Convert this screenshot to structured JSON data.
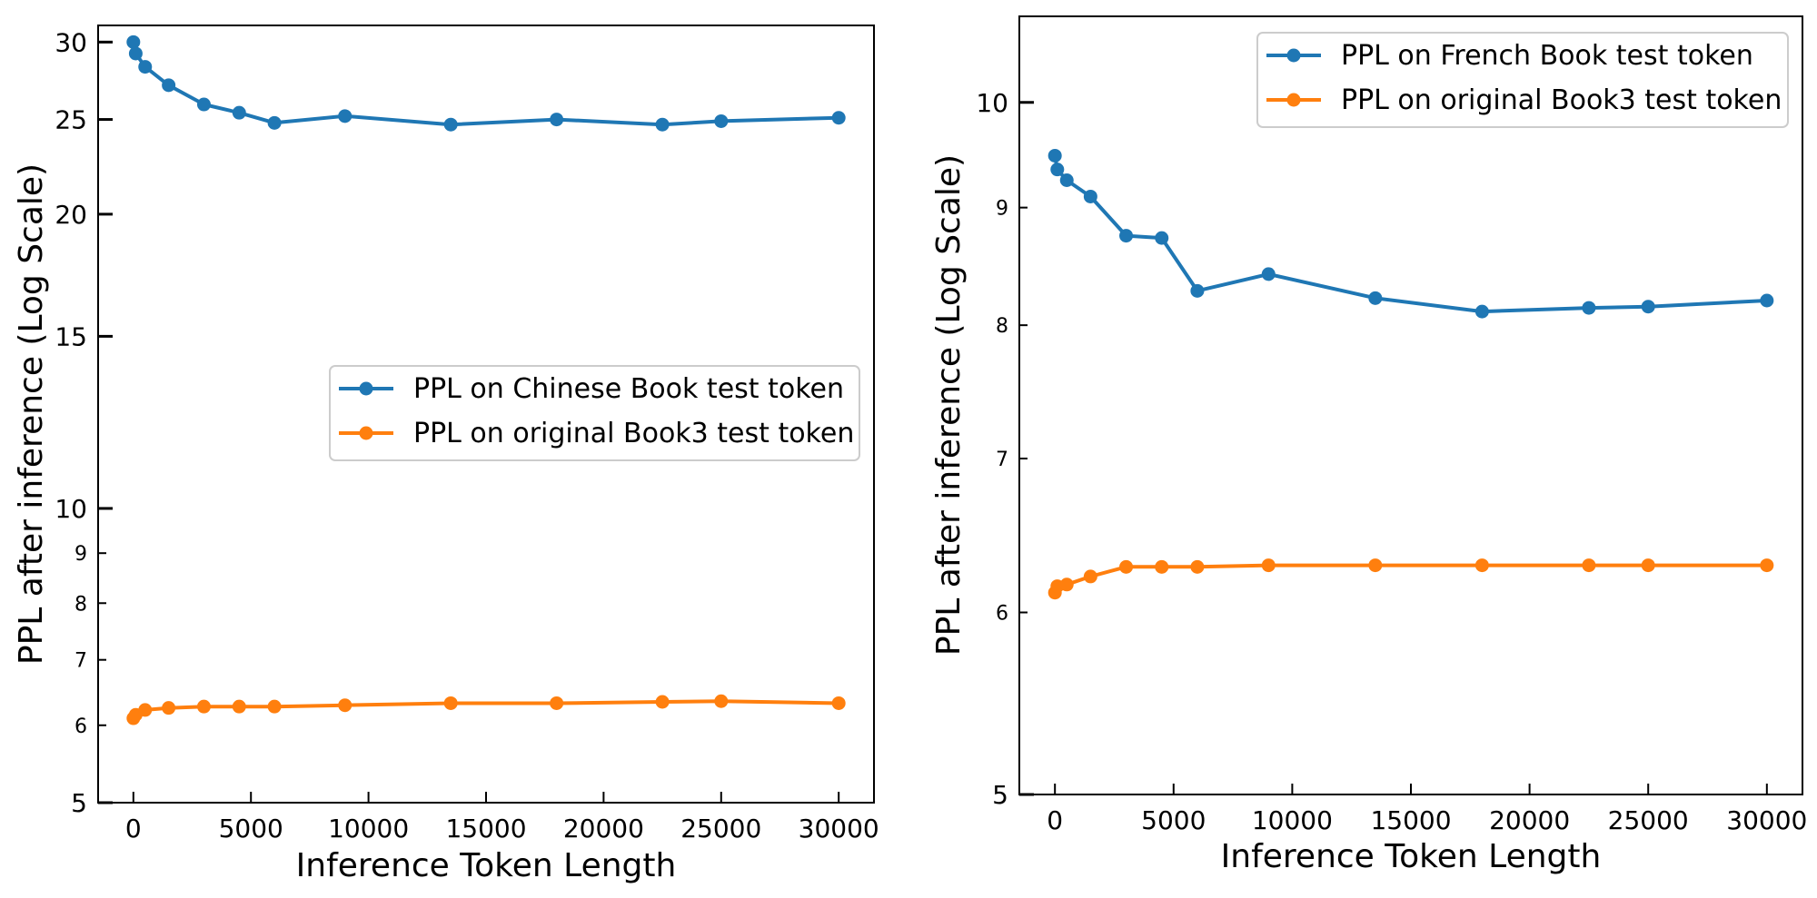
{
  "chart_data": [
    {
      "type": "line",
      "xlabel": "Inference Token Length",
      "ylabel": "PPL after inference (Log Scale)",
      "yscale": "log",
      "xlim": [
        -1500,
        31500
      ],
      "ylim": [
        5,
        31.2
      ],
      "xticks": [
        0,
        5000,
        10000,
        15000,
        20000,
        25000,
        30000
      ],
      "xtick_labels": [
        "0",
        "5000",
        "10000",
        "15000",
        "20000",
        "25000",
        "30000"
      ],
      "yticks_major": [
        5,
        10,
        15,
        20,
        25,
        30
      ],
      "ytick_labels_major": [
        "5",
        "10",
        "15",
        "20",
        "25",
        "30"
      ],
      "yticks_minor": [
        6,
        7,
        8,
        9
      ],
      "ytick_labels_minor": [
        "6",
        "7",
        "8",
        "9"
      ],
      "grid": false,
      "legend_position": "center-right",
      "x": [
        0,
        100,
        500,
        1500,
        3000,
        4500,
        6000,
        9000,
        13500,
        18000,
        22500,
        25000,
        30000
      ],
      "series": [
        {
          "name": "PPL on Chinese Book test token",
          "color": "#1f77b4",
          "values": [
            30.0,
            29.2,
            28.3,
            27.1,
            25.9,
            25.4,
            24.8,
            25.2,
            24.7,
            25.0,
            24.7,
            24.9,
            25.1
          ]
        },
        {
          "name": "PPL on original Book3 test token",
          "color": "#ff7f0e",
          "values": [
            6.1,
            6.15,
            6.22,
            6.25,
            6.27,
            6.27,
            6.27,
            6.29,
            6.32,
            6.32,
            6.34,
            6.35,
            6.32
          ]
        }
      ]
    },
    {
      "type": "line",
      "xlabel": "Inference Token Length",
      "ylabel": "PPL after inference (Log Scale)",
      "yscale": "log",
      "xlim": [
        -1500,
        31500
      ],
      "ylim": [
        5,
        10.9
      ],
      "xticks": [
        0,
        5000,
        10000,
        15000,
        20000,
        25000,
        30000
      ],
      "xtick_labels": [
        "0",
        "5000",
        "10000",
        "15000",
        "20000",
        "25000",
        "30000"
      ],
      "yticks_major": [
        5,
        10
      ],
      "ytick_labels_major": [
        "5",
        "10"
      ],
      "yticks_minor": [
        6,
        7,
        8,
        9
      ],
      "ytick_labels_minor": [
        "6",
        "7",
        "8",
        "9"
      ],
      "grid": false,
      "legend_position": "top-right",
      "x": [
        0,
        100,
        500,
        1500,
        3000,
        4500,
        6000,
        9000,
        13500,
        18000,
        22500,
        25000,
        30000
      ],
      "series": [
        {
          "name": "PPL on French Book test token",
          "color": "#1f77b4",
          "values": [
            9.48,
            9.35,
            9.25,
            9.1,
            8.75,
            8.73,
            8.28,
            8.42,
            8.22,
            8.11,
            8.14,
            8.15,
            8.2
          ]
        },
        {
          "name": "PPL on original Book3 test token",
          "color": "#ff7f0e",
          "values": [
            6.12,
            6.16,
            6.17,
            6.22,
            6.28,
            6.28,
            6.28,
            6.29,
            6.29,
            6.29,
            6.29,
            6.29,
            6.29
          ]
        }
      ]
    }
  ]
}
